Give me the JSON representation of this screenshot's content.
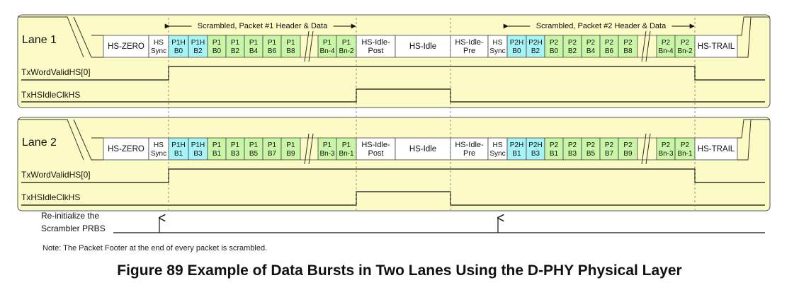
{
  "figure": {
    "caption": "Figure 89 Example of Data Bursts in Two Lanes Using the D-PHY Physical Layer",
    "note": "Note: The Packet Footer at the end of every packet is scrambled."
  },
  "brackets": {
    "packet1": "Scrambled, Packet #1 Header & Data",
    "packet2": "Scrambled, Packet #2 Header & Data"
  },
  "signals": {
    "word_valid": "TxWordValidHS[0]",
    "idle_clk": "TxHSIdleClkHS",
    "reinit_line1": "Re-initialize the",
    "reinit_line2": "Scrambler PRBS"
  },
  "colors": {
    "panel_fill": "#fdfbc5",
    "header_fill": "#a6f3f7",
    "data_fill": "#c9f5a7",
    "white_fill": "#ffffff"
  },
  "lanes": [
    {
      "label": "Lane 1",
      "cells": [
        {
          "type": "plain",
          "lines": [
            "HS-ZERO"
          ]
        },
        {
          "type": "plain",
          "lines": [
            "HS",
            "Sync"
          ]
        },
        {
          "type": "header",
          "lines": [
            "P1H",
            "B0"
          ]
        },
        {
          "type": "header",
          "lines": [
            "P1H",
            "B2"
          ]
        },
        {
          "type": "data",
          "lines": [
            "P1",
            "B0"
          ]
        },
        {
          "type": "data",
          "lines": [
            "P1",
            "B2"
          ]
        },
        {
          "type": "data",
          "lines": [
            "P1",
            "B4"
          ]
        },
        {
          "type": "data",
          "lines": [
            "P1",
            "B6"
          ]
        },
        {
          "type": "data",
          "lines": [
            "P1",
            "B8"
          ]
        },
        {
          "type": "data",
          "lines": [
            "P1",
            "Bn-4"
          ]
        },
        {
          "type": "data",
          "lines": [
            "P1",
            "Bn-2"
          ]
        },
        {
          "type": "plain",
          "lines": [
            "HS-Idle-",
            "Post"
          ]
        },
        {
          "type": "plain",
          "lines": [
            "HS-Idle"
          ]
        },
        {
          "type": "plain",
          "lines": [
            "HS-Idle-",
            "Pre"
          ]
        },
        {
          "type": "plain",
          "lines": [
            "HS",
            "Sync"
          ]
        },
        {
          "type": "header",
          "lines": [
            "P2H",
            "B0"
          ]
        },
        {
          "type": "header",
          "lines": [
            "P2H",
            "B2"
          ]
        },
        {
          "type": "data",
          "lines": [
            "P2",
            "B0"
          ]
        },
        {
          "type": "data",
          "lines": [
            "P2",
            "B2"
          ]
        },
        {
          "type": "data",
          "lines": [
            "P2",
            "B4"
          ]
        },
        {
          "type": "data",
          "lines": [
            "P2",
            "B6"
          ]
        },
        {
          "type": "data",
          "lines": [
            "P2",
            "B8"
          ]
        },
        {
          "type": "data",
          "lines": [
            "P2",
            "Bn-4"
          ]
        },
        {
          "type": "data",
          "lines": [
            "P2",
            "Bn-2"
          ]
        },
        {
          "type": "plain",
          "lines": [
            "HS-TRAIL"
          ]
        }
      ]
    },
    {
      "label": "Lane 2",
      "cells": [
        {
          "type": "plain",
          "lines": [
            "HS-ZERO"
          ]
        },
        {
          "type": "plain",
          "lines": [
            "HS",
            "Sync"
          ]
        },
        {
          "type": "header",
          "lines": [
            "P1H",
            "B1"
          ]
        },
        {
          "type": "header",
          "lines": [
            "P1H",
            "B3"
          ]
        },
        {
          "type": "data",
          "lines": [
            "P1",
            "B1"
          ]
        },
        {
          "type": "data",
          "lines": [
            "P1",
            "B3"
          ]
        },
        {
          "type": "data",
          "lines": [
            "P1",
            "B5"
          ]
        },
        {
          "type": "data",
          "lines": [
            "P1",
            "B7"
          ]
        },
        {
          "type": "data",
          "lines": [
            "P1",
            "B9"
          ]
        },
        {
          "type": "data",
          "lines": [
            "P1",
            "Bn-3"
          ]
        },
        {
          "type": "data",
          "lines": [
            "P1",
            "Bn-1"
          ]
        },
        {
          "type": "plain",
          "lines": [
            "HS-Idle-",
            "Post"
          ]
        },
        {
          "type": "plain",
          "lines": [
            "HS-Idle"
          ]
        },
        {
          "type": "plain",
          "lines": [
            "HS-Idle-",
            "Pre"
          ]
        },
        {
          "type": "plain",
          "lines": [
            "HS",
            "Sync"
          ]
        },
        {
          "type": "header",
          "lines": [
            "P2H",
            "B1"
          ]
        },
        {
          "type": "header",
          "lines": [
            "P2H",
            "B3"
          ]
        },
        {
          "type": "data",
          "lines": [
            "P2",
            "B1"
          ]
        },
        {
          "type": "data",
          "lines": [
            "P2",
            "B3"
          ]
        },
        {
          "type": "data",
          "lines": [
            "P2",
            "B5"
          ]
        },
        {
          "type": "data",
          "lines": [
            "P2",
            "B7"
          ]
        },
        {
          "type": "data",
          "lines": [
            "P2",
            "B9"
          ]
        },
        {
          "type": "data",
          "lines": [
            "P2",
            "Bn-3"
          ]
        },
        {
          "type": "data",
          "lines": [
            "P2",
            "Bn-1"
          ]
        },
        {
          "type": "plain",
          "lines": [
            "HS-TRAIL"
          ]
        }
      ]
    }
  ]
}
